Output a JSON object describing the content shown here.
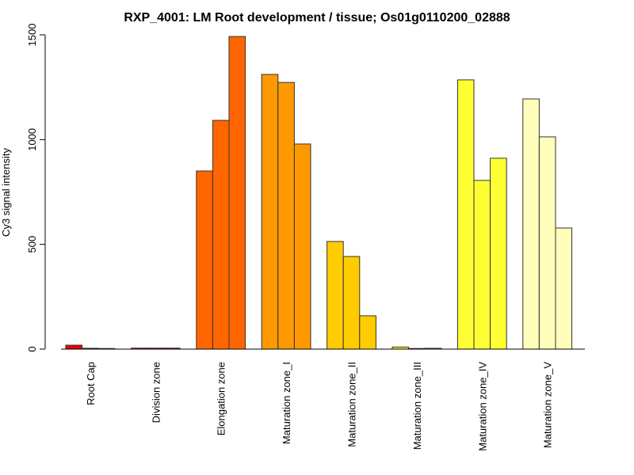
{
  "chart_data": {
    "type": "bar",
    "title": "RXP_4001: LM Root development / tissue; Os01g0110200_02888",
    "xlabel": "",
    "ylabel": "Cy3 signal intensity",
    "ylim": [
      0,
      1500
    ],
    "yticks": [
      0,
      500,
      1000,
      1500
    ],
    "grid": false,
    "legend": "none",
    "categories": [
      "Root Cap",
      "Division zone",
      "Elongation zone",
      "Maturation zone_I",
      "Maturation zone_II",
      "Maturation zone_III",
      "Maturation zone_IV",
      "Maturation zone_V"
    ],
    "colors": [
      "#EE0000",
      "#DD2200",
      "#FF6600",
      "#FF9900",
      "#FFCC00",
      "#FFEE00",
      "#FFFF33",
      "#FFFFBB"
    ],
    "replicates": [
      [
        19,
        4,
        3
      ],
      [
        5,
        5,
        5
      ],
      [
        850,
        1092,
        1492
      ],
      [
        1311,
        1273,
        979
      ],
      [
        514,
        442,
        159
      ],
      [
        10,
        3,
        4
      ],
      [
        1285,
        805,
        911
      ],
      [
        1194,
        1013,
        578
      ]
    ]
  }
}
